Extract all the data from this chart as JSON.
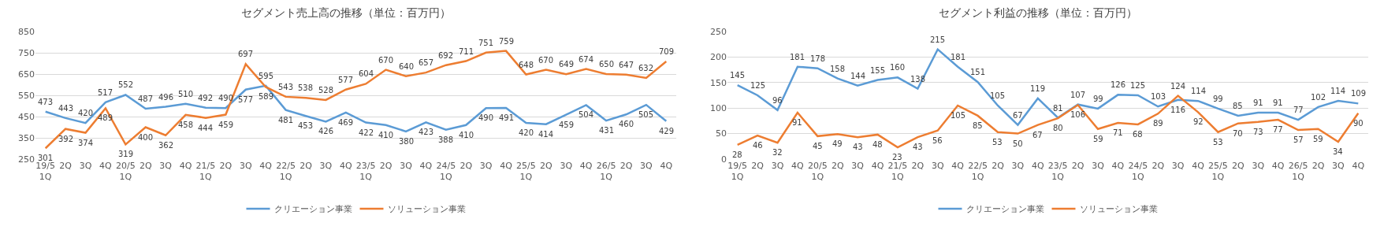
{
  "chart_data": [
    {
      "type": "line",
      "title": "セグメント売上高の推移（単位：百万円）",
      "categories": [
        "19/5\n1Q",
        "2Q",
        "3Q",
        "4Q",
        "20/5\n1Q",
        "2Q",
        "3Q",
        "4Q",
        "21/5\n1Q",
        "2Q",
        "3Q",
        "4Q",
        "22/5\n1Q",
        "2Q",
        "3Q",
        "4Q",
        "23/5\n1Q",
        "2Q",
        "3Q",
        "4Q",
        "24/5\n1Q",
        "2Q",
        "3Q",
        "4Q",
        "25/5\n1Q",
        "2Q",
        "3Q",
        "4Q",
        "26/5\n1Q",
        "2Q",
        "3Q",
        "4Q"
      ],
      "series": [
        {
          "name": "クリエーション事業",
          "color": "#5b9bd5",
          "values": [
            473,
            443,
            420,
            517,
            552,
            487,
            496,
            510,
            492,
            490,
            577,
            595,
            481,
            453,
            426,
            469,
            422,
            410,
            380,
            423,
            388,
            410,
            490,
            491,
            420,
            414,
            459,
            504,
            431,
            460,
            505,
            429
          ]
        },
        {
          "name": "ソリューション事業",
          "color": "#ed7d31",
          "values": [
            301,
            392,
            374,
            489,
            319,
            400,
            362,
            458,
            444,
            459,
            697,
            589,
            543,
            538,
            528,
            577,
            604,
            670,
            640,
            657,
            692,
            711,
            751,
            759,
            648,
            670,
            649,
            674,
            650,
            647,
            632,
            709
          ]
        }
      ],
      "ylim": [
        250,
        850
      ],
      "yticks": [
        250,
        350,
        450,
        550,
        650,
        750,
        850
      ],
      "grid": "y",
      "legend": "bottom",
      "data_labels": true,
      "marker": "none",
      "line_style": "solid"
    },
    {
      "type": "line",
      "title": "セグメント利益の推移（単位：百万円）",
      "categories": [
        "19/5\n1Q",
        "2Q",
        "3Q",
        "4Q",
        "20/5\n1Q",
        "2Q",
        "3Q",
        "4Q",
        "21/5\n1Q",
        "2Q",
        "3Q",
        "4Q",
        "22/5\n1Q",
        "2Q",
        "3Q",
        "4Q",
        "23/5\n1Q",
        "2Q",
        "3Q",
        "4Q",
        "24/5\n1Q",
        "2Q",
        "3Q",
        "4Q",
        "25/5\n1Q",
        "2Q",
        "3Q",
        "4Q",
        "26/5\n1Q",
        "2Q",
        "3Q",
        "4Q"
      ],
      "series": [
        {
          "name": "クリエーション事業",
          "color": "#5b9bd5",
          "values": [
            145,
            125,
            96,
            181,
            178,
            158,
            144,
            155,
            160,
            138,
            215,
            181,
            151,
            105,
            67,
            119,
            81,
            107,
            99,
            126,
            125,
            103,
            116,
            114,
            99,
            85,
            91,
            91,
            77,
            102,
            114,
            109
          ]
        },
        {
          "name": "ソリューション事業",
          "color": "#ed7d31",
          "values": [
            28,
            46,
            32,
            91,
            45,
            49,
            43,
            48,
            23,
            43,
            56,
            105,
            85,
            53,
            50,
            67,
            80,
            106,
            59,
            71,
            68,
            89,
            124,
            92,
            53,
            70,
            73,
            77,
            57,
            59,
            34,
            90
          ]
        }
      ],
      "ylim": [
        0,
        250
      ],
      "yticks": [
        0,
        50,
        100,
        150,
        200,
        250
      ],
      "grid": "y",
      "legend": "bottom",
      "data_labels": true,
      "marker": "none",
      "line_style": "solid"
    }
  ]
}
